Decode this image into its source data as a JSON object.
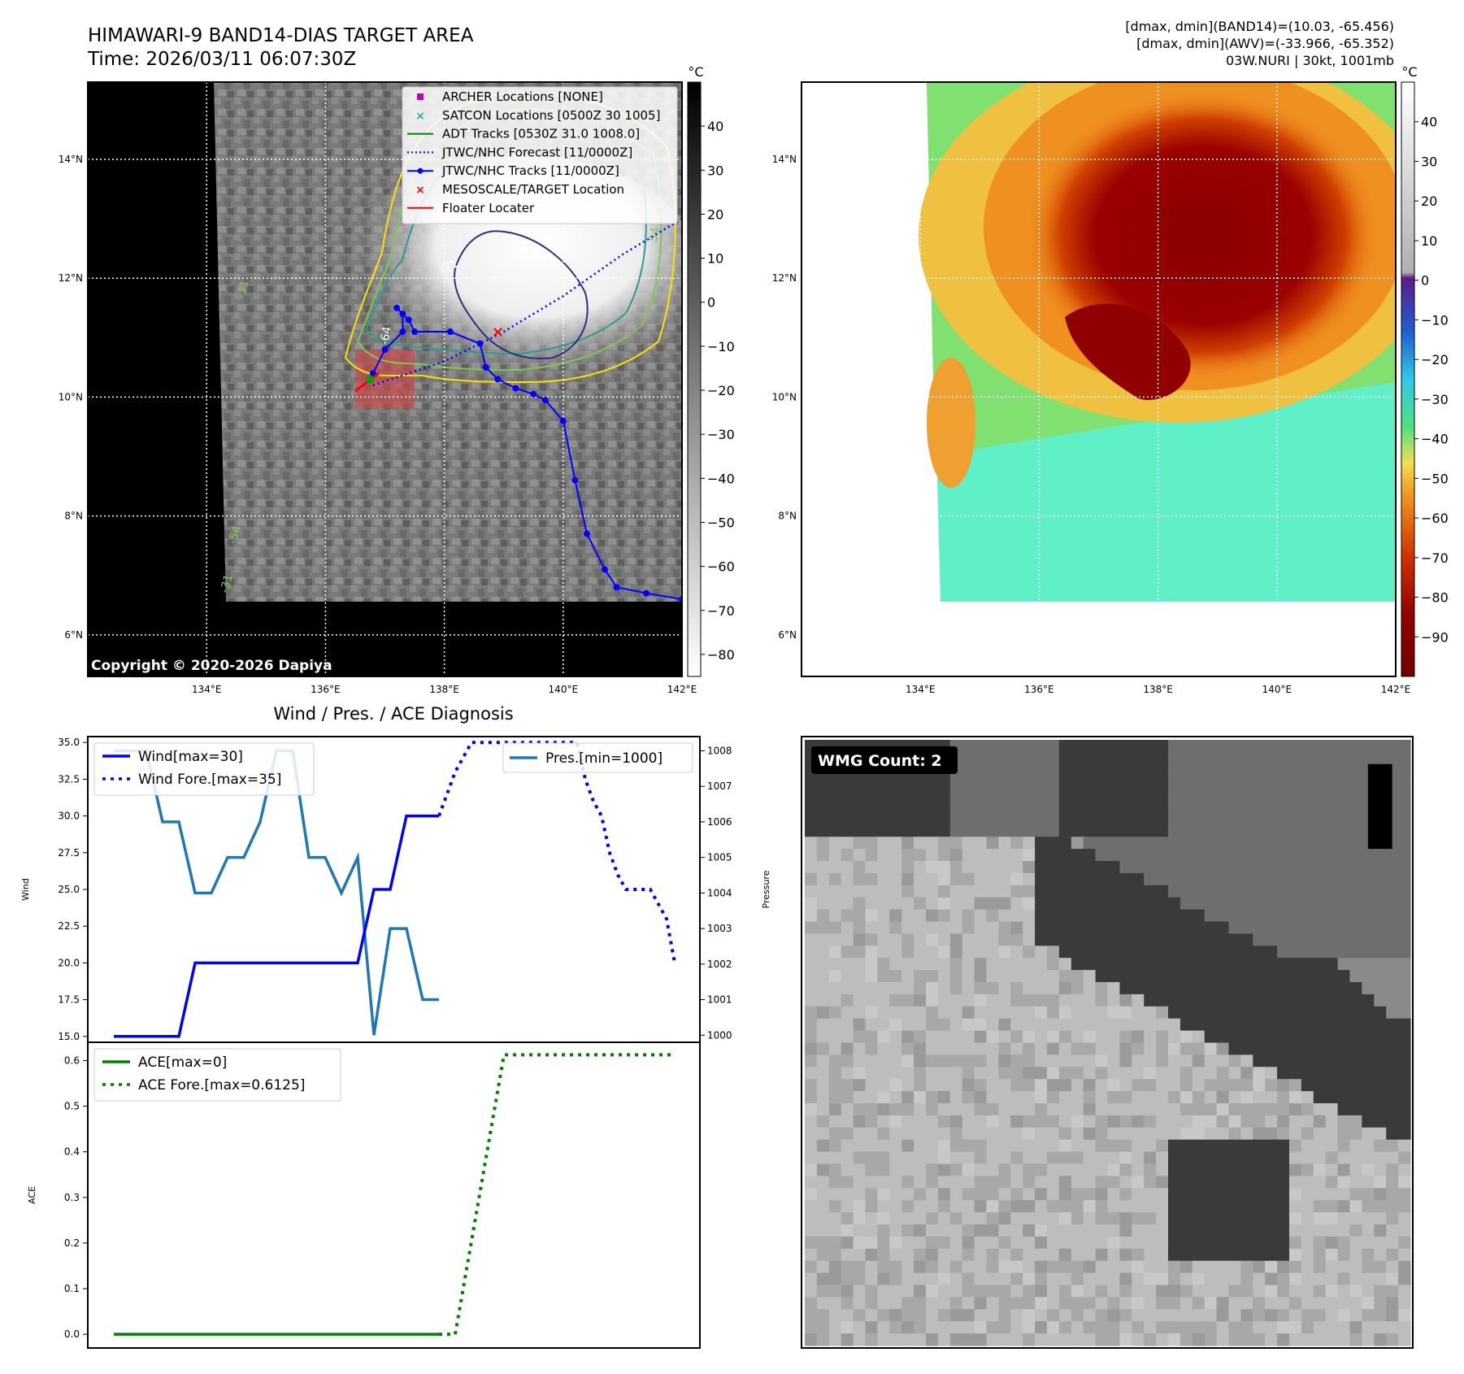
{
  "header": {
    "title_line1": "HIMAWARI-9 BAND14-DIAS TARGET AREA",
    "title_line2": "Time: 2026/03/11 06:07:30Z",
    "info_line1": "[dmax, dmin](BAND14)=(10.03, -65.456)",
    "info_line2": "[dmax, dmin](AWV)=(-33.966, -65.352)",
    "info_line3": "03W.NURI | 30kt, 1001mb"
  },
  "copyright": "Copyright © 2020-2026 Dapiya",
  "colors": {
    "wind": "#0000ff",
    "pres": "#1f77b4",
    "ace": "#008000",
    "track": "#0000ff",
    "target": "#ff0000",
    "contour_yellow": "#ffe100",
    "contour_green": "#7ec850",
    "contour_teal": "#2a9d8f",
    "contour_navy": "#283080"
  },
  "map_axes": {
    "lon_ticks": [
      "134°E",
      "136°E",
      "138°E",
      "140°E",
      "142°E"
    ],
    "lat_ticks": [
      "14°N",
      "12°N",
      "10°N",
      "8°N",
      "6°N"
    ],
    "lon_range": [
      132,
      142
    ],
    "lat_range": [
      5.3,
      15.3
    ]
  },
  "colorbar_left": {
    "unit": "°C",
    "ticks": [
      "40",
      "30",
      "20",
      "10",
      "0",
      "−10",
      "−20",
      "−30",
      "−40",
      "−50",
      "−60",
      "−70",
      "−80"
    ],
    "range": [
      -85,
      50
    ]
  },
  "colorbar_right": {
    "unit": "°C",
    "ticks": [
      "40",
      "30",
      "20",
      "10",
      "0",
      "−10",
      "−20",
      "−30",
      "−40",
      "−50",
      "−60",
      "−70",
      "−80",
      "−90"
    ],
    "range": [
      -100,
      50
    ]
  },
  "legend": [
    {
      "label": "ARCHER Locations [NONE]",
      "symbol": "square",
      "color": "#c000c0"
    },
    {
      "label": "SATCON Locations [0500Z 30 1005]",
      "symbol": "x",
      "color": "#20b0b0"
    },
    {
      "label": "ADT Tracks [0530Z 31.0 1008.0]",
      "symbol": "line",
      "color": "#008000"
    },
    {
      "label": "JTWC/NHC Forecast [11/0000Z]",
      "symbol": "dotted",
      "color": "#0000ff"
    },
    {
      "label": "JTWC/NHC Tracks [11/0000Z]",
      "symbol": "line-dot",
      "color": "#0000ff"
    },
    {
      "label": "MESOSCALE/TARGET Location",
      "symbol": "x",
      "color": "#ff0000"
    },
    {
      "label": "Floater Locater",
      "symbol": "line",
      "color": "#ff0000"
    }
  ],
  "contour_labels": [
    "-71",
    "-64",
    "54",
    "-54",
    "-31",
    "-31"
  ],
  "track_data": {
    "best_track": [
      [
        142.0,
        6.6
      ],
      [
        141.4,
        6.7
      ],
      [
        140.9,
        6.8
      ],
      [
        140.7,
        7.1
      ],
      [
        140.4,
        7.7
      ],
      [
        140.2,
        8.6
      ],
      [
        140.0,
        9.6
      ],
      [
        139.7,
        9.95
      ],
      [
        139.5,
        10.05
      ],
      [
        139.2,
        10.15
      ],
      [
        138.9,
        10.3
      ],
      [
        138.7,
        10.5
      ],
      [
        138.6,
        10.9
      ],
      [
        138.1,
        11.1
      ],
      [
        137.5,
        11.1
      ],
      [
        137.4,
        11.3
      ],
      [
        137.2,
        11.5
      ],
      [
        137.3,
        11.4
      ],
      [
        137.3,
        11.1
      ],
      [
        137.0,
        10.8
      ],
      [
        136.8,
        10.4
      ]
    ],
    "forecast_track": [
      [
        136.8,
        10.2
      ],
      [
        138.0,
        10.6
      ],
      [
        139.0,
        11.1
      ],
      [
        140.0,
        11.7
      ],
      [
        141.0,
        12.4
      ],
      [
        142.0,
        13.0
      ]
    ],
    "target": [
      138.9,
      11.1
    ],
    "floater_line": [
      [
        136.5,
        10.1
      ],
      [
        136.9,
        10.4
      ]
    ],
    "adt_point": [
      136.75,
      10.3
    ],
    "target_box": [
      [
        136.5,
        9.8
      ],
      [
        137.5,
        10.5
      ]
    ]
  },
  "wind_panel": {
    "title": "Wind / Pres. / ACE Diagnosis",
    "left_ylabel": "Wind",
    "right_ylabel": "Pressure",
    "legend_left": [
      {
        "label": "Wind[max=30]",
        "style": "solid",
        "color": "#0000ff"
      },
      {
        "label": "Wind Fore.[max=35]",
        "style": "dotted",
        "color": "#0000ff"
      }
    ],
    "legend_right": [
      {
        "label": "Pres.[min=1000]",
        "style": "solid",
        "color": "#1f77b4"
      }
    ]
  },
  "ace_panel": {
    "ylabel": "ACE",
    "legend": [
      {
        "label": "ACE[max=0]",
        "style": "solid",
        "color": "#008000"
      },
      {
        "label": "ACE Fore.[max=0.6125]",
        "style": "dotted",
        "color": "#008000"
      }
    ]
  },
  "wmg": {
    "label": "WMG Count: 2"
  },
  "chart_data": [
    {
      "type": "line",
      "name": "wind",
      "x": [
        0,
        4,
        5,
        6,
        7,
        8,
        9,
        10,
        11,
        12,
        13,
        14,
        15,
        16,
        17,
        18,
        19,
        20
      ],
      "series": [
        {
          "name": "Wind[max=30]",
          "values": [
            15,
            15,
            20,
            20,
            20,
            20,
            20,
            20,
            20,
            20,
            20,
            20,
            20,
            25,
            25,
            30,
            30,
            30
          ]
        }
      ],
      "ylabel": "Wind",
      "ylim": [
        14.6,
        35.4
      ],
      "yticks": [
        "15.0",
        "17.5",
        "20.0",
        "22.5",
        "25.0",
        "27.5",
        "30.0",
        "32.5",
        "35.0"
      ]
    },
    {
      "type": "line",
      "name": "wind_forecast",
      "x": [
        20,
        21,
        22,
        23,
        24,
        25,
        26,
        27,
        28,
        28.5,
        29,
        29.5,
        30,
        30.5,
        31,
        31.5,
        32,
        33,
        34,
        34.5
      ],
      "series": [
        {
          "name": "Wind Fore.[max=35]",
          "values": [
            30,
            33,
            35,
            35,
            35,
            35,
            35,
            35,
            35,
            35,
            32.5,
            31,
            30,
            27.5,
            26,
            25,
            25,
            25,
            23,
            20
          ]
        }
      ],
      "ylim": [
        14.6,
        35.4
      ]
    },
    {
      "type": "line",
      "name": "pressure",
      "x": [
        0,
        1,
        2,
        3,
        4,
        5,
        6,
        7,
        8,
        9,
        10,
        11,
        12,
        13,
        14,
        15,
        16,
        17,
        18,
        19,
        20
      ],
      "series": [
        {
          "name": "Pres.[min=1000]",
          "values": [
            1008,
            1008,
            1008,
            1006,
            1006,
            1004,
            1004,
            1005,
            1005,
            1006,
            1008,
            1008,
            1005,
            1005,
            1004,
            1005,
            1000,
            1003,
            1003,
            1001,
            1001
          ]
        }
      ],
      "ylabel": "Pressure",
      "ylim": [
        999.8,
        1008.4
      ],
      "yticks": [
        "1000",
        "1001",
        "1002",
        "1003",
        "1004",
        "1005",
        "1006",
        "1007",
        "1008"
      ]
    },
    {
      "type": "line",
      "name": "ace",
      "x": [
        0,
        20
      ],
      "series": [
        {
          "name": "ACE[max=0]",
          "values": [
            0,
            0
          ]
        }
      ],
      "ylabel": "ACE",
      "ylim": [
        -0.03,
        0.64
      ],
      "yticks": [
        "0.0",
        "0.1",
        "0.2",
        "0.3",
        "0.4",
        "0.5",
        "0.6"
      ]
    },
    {
      "type": "line",
      "name": "ace_forecast",
      "x": [
        20,
        21,
        24,
        28,
        34.5
      ],
      "series": [
        {
          "name": "ACE Fore.[max=0.6125]",
          "values": [
            0,
            0,
            0.6125,
            0.6125,
            0.6125
          ]
        }
      ],
      "ylim": [
        -0.03,
        0.64
      ]
    }
  ]
}
